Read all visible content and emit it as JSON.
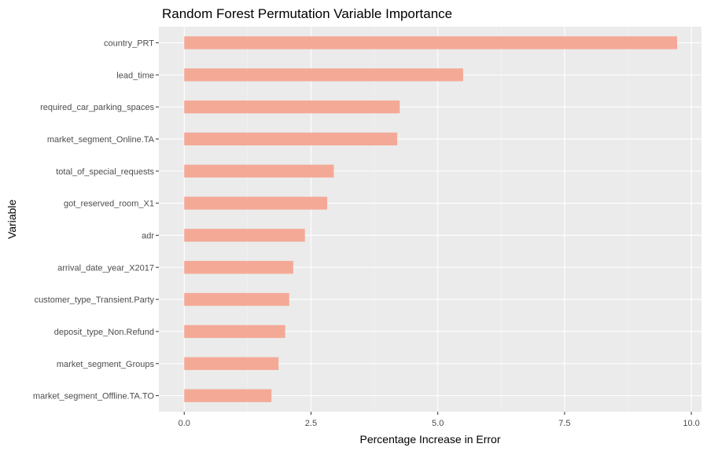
{
  "chart_data": {
    "type": "bar",
    "orientation": "horizontal",
    "title": "Random Forest Permutation Variable Importance",
    "xlabel": "Percentage Increase in Error",
    "ylabel": "Variable",
    "xlim": [
      -0.5,
      10.2
    ],
    "x_ticks": [
      0,
      2.5,
      5,
      7.5,
      10
    ],
    "x_tick_labels": [
      "0.0",
      "2.5",
      "5.0",
      "7.5",
      "10.0"
    ],
    "grid": true,
    "legend": "none",
    "categories": [
      "country_PRT",
      "lead_time",
      "required_car_parking_spaces",
      "market_segment_Online.TA",
      "total_of_special_requests",
      "got_reserved_room_X1",
      "adr",
      "arrival_date_year_X2017",
      "customer_type_Transient.Party",
      "deposit_type_Non.Refund",
      "market_segment_Groups",
      "market_segment_Offline.TA.TO"
    ],
    "values": [
      9.72,
      5.5,
      4.25,
      4.2,
      2.95,
      2.82,
      2.38,
      2.15,
      2.07,
      1.99,
      1.86,
      1.72
    ]
  },
  "colors": {
    "bar": "#f4a996",
    "panel_background": "#ebebeb",
    "grid_major": "#ffffff",
    "grid_minor": "#f5f5f5",
    "tick_mark": "#333333"
  }
}
